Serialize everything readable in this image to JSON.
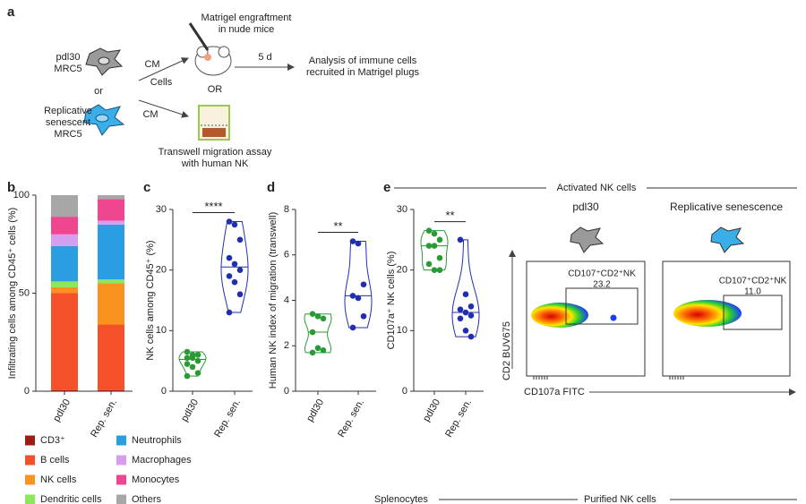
{
  "panel_labels": [
    "a",
    "b",
    "c",
    "d",
    "e"
  ],
  "schematic": {
    "cell1": [
      "pdl30",
      "MRC5"
    ],
    "or": "or",
    "cell2": [
      "Replicative",
      "senescent",
      "MRC5"
    ],
    "cm1": "CM",
    "cells": "Cells",
    "cm2": "CM",
    "matrigel": [
      "Matrigel engraftment",
      "in nude mice"
    ],
    "days": "5 d",
    "or2": "OR",
    "analysis": [
      "Analysis of immune cells",
      "recruited in Matrigel plugs"
    ],
    "transwell": [
      "Transwell migration assay",
      "with human NK"
    ]
  },
  "chart_data": [
    {
      "type": "stacked_bar",
      "y_label": "Infiltrating cells among CD45⁺ cells (%)",
      "categories": [
        "pdl30",
        "Rep. sen."
      ],
      "ylim": [
        0,
        100
      ],
      "yticks": [
        0,
        50,
        100
      ],
      "series": [
        {
          "name": "CD3⁺",
          "color": "#9b1c12",
          "values": [
            0.5,
            0.5
          ]
        },
        {
          "name": "B cells",
          "color": "#f4512b",
          "values": [
            49.5,
            33.5
          ]
        },
        {
          "name": "NK cells",
          "color": "#f7931e",
          "values": [
            3,
            21
          ]
        },
        {
          "name": "Dendritic cells",
          "color": "#8ee65a",
          "values": [
            3,
            2
          ]
        },
        {
          "name": "Neutrophils",
          "color": "#2a9ee0",
          "values": [
            18,
            28
          ]
        },
        {
          "name": "Macrophages",
          "color": "#d59ef0",
          "values": [
            6,
            2
          ]
        },
        {
          "name": "Monocytes",
          "color": "#f0468f",
          "values": [
            9,
            11
          ]
        },
        {
          "name": "Others",
          "color": "#a7a7a7",
          "values": [
            11,
            2
          ]
        }
      ]
    },
    {
      "type": "violin",
      "y_label": "NK cells among CD45⁺ (%)",
      "categories": [
        "pdl30",
        "Rep. sen."
      ],
      "colors": [
        "#2a9a35",
        "#1f2fb0"
      ],
      "ylim": [
        0,
        30
      ],
      "yticks": [
        0,
        10,
        20,
        30
      ],
      "significance": "****",
      "values": [
        [
          6.5,
          6,
          6,
          5.5,
          5.5,
          5,
          4.5,
          4,
          3,
          2.5
        ],
        [
          28,
          27.5,
          25,
          22,
          21,
          20,
          19,
          18,
          16,
          13
        ]
      ]
    },
    {
      "type": "violin",
      "y_label": "Human NK index of migration (transwell)",
      "categories": [
        "pdl30",
        "Rep. sen."
      ],
      "colors": [
        "#2a9a35",
        "#1f2fb0"
      ],
      "ylim": [
        0,
        8
      ],
      "yticks": [
        0,
        2,
        4,
        6,
        8
      ],
      "significance": "**",
      "values": [
        [
          3.4,
          3.3,
          3.2,
          2.6,
          1.9,
          1.8,
          1.7
        ],
        [
          6.6,
          6.5,
          4.7,
          4.2,
          4.1,
          3.3,
          2.8
        ]
      ]
    },
    {
      "type": "violin",
      "y_label": "CD107a⁺ NK cells (%)",
      "categories": [
        "pdl30",
        "Rep. sen."
      ],
      "colors": [
        "#2a9a35",
        "#1f2fb0"
      ],
      "ylim": [
        0,
        30
      ],
      "yticks": [
        0,
        10,
        20,
        30
      ],
      "significance": "**",
      "values": [
        [
          26.5,
          26,
          25,
          24,
          24,
          22,
          21,
          20,
          20
        ],
        [
          25,
          16,
          14,
          13.5,
          13,
          12.5,
          12,
          10,
          9
        ]
      ]
    }
  ],
  "flow": {
    "heading": "Activated NK cells",
    "plots": [
      {
        "title": "pdl30",
        "gate": "CD107⁺CD2⁺NK",
        "value": "23.2"
      },
      {
        "title": "Replicative senescence",
        "gate": "CD107⁺CD2⁺NK",
        "value": "11.0"
      }
    ],
    "y_label": "CD2 BUV675",
    "x_label": "CD107a FITC"
  },
  "bottom": {
    "left": "Splenocytes",
    "right": "Purified NK cells"
  }
}
